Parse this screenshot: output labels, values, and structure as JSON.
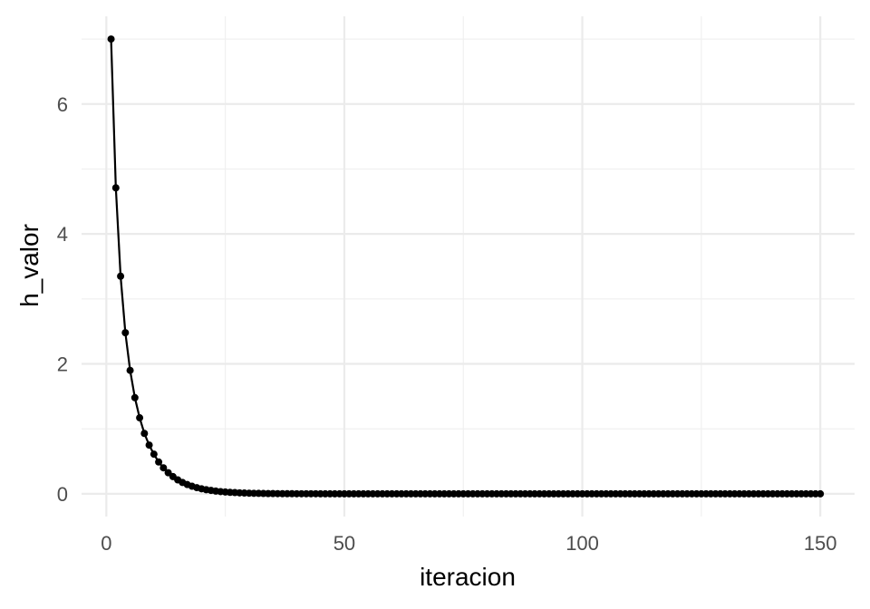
{
  "chart_data": {
    "type": "line",
    "title": "",
    "xlabel": "iteracion",
    "ylabel": "h_valor",
    "xlim": [
      -5.2,
      157.2
    ],
    "ylim": [
      -0.35,
      7.35
    ],
    "x_ticks": [
      0,
      50,
      100,
      150
    ],
    "x_tick_labels": [
      "0",
      "50",
      "100",
      "150"
    ],
    "y_ticks": [
      0,
      2,
      4,
      6
    ],
    "y_tick_labels": [
      "0",
      "2",
      "4",
      "6"
    ],
    "x_minor_ticks": [
      25,
      75,
      125
    ],
    "y_minor_ticks": [
      1,
      3,
      5,
      7
    ],
    "grid": true,
    "legend": "none",
    "line_color": "#000000",
    "point_color": "#000000",
    "series": [
      {
        "x_start": 1,
        "x_end": 150,
        "x_step": 1,
        "values": [
          7.0,
          4.71,
          3.35,
          2.48,
          1.9,
          1.48,
          1.17,
          0.93,
          0.75,
          0.61,
          0.49,
          0.4,
          0.325,
          0.265,
          0.215,
          0.175,
          0.143,
          0.117,
          0.095,
          0.078,
          0.063,
          0.052,
          0.042,
          0.034,
          0.028,
          0.023,
          0.019,
          0.015,
          0.012,
          0.01,
          0.008,
          0.007,
          0.005,
          0.004,
          0.004,
          0.003,
          0.002,
          0.002,
          0.002,
          0.001,
          0.001,
          0.001,
          0.001,
          0.001,
          0.0,
          0.0,
          0.0,
          0.0,
          0.0,
          0.0,
          0.0,
          0.0,
          0.0,
          0.0,
          0.0,
          0.0,
          0.0,
          0.0,
          0.0,
          0.0,
          0.0,
          0.0,
          0.0,
          0.0,
          0.0,
          0.0,
          0.0,
          0.0,
          0.0,
          0.0,
          0.0,
          0.0,
          0.0,
          0.0,
          0.0,
          0.0,
          0.0,
          0.0,
          0.0,
          0.0,
          0.0,
          0.0,
          0.0,
          0.0,
          0.0,
          0.0,
          0.0,
          0.0,
          0.0,
          0.0,
          0.0,
          0.0,
          0.0,
          0.0,
          0.0,
          0.0,
          0.0,
          0.0,
          0.0,
          0.0,
          0.0,
          0.0,
          0.0,
          0.0,
          0.0,
          0.0,
          0.0,
          0.0,
          0.0,
          0.0,
          0.0,
          0.0,
          0.0,
          0.0,
          0.0,
          0.0,
          0.0,
          0.0,
          0.0,
          0.0,
          0.0,
          0.0,
          0.0,
          0.0,
          0.0,
          0.0,
          0.0,
          0.0,
          0.0,
          0.0,
          0.0,
          0.0,
          0.0,
          0.0,
          0.0,
          0.0,
          0.0,
          0.0,
          0.0,
          0.0,
          0.0,
          0.0,
          0.0,
          0.0,
          0.0,
          0.0,
          0.0,
          0.0,
          0.0,
          0.0
        ]
      }
    ]
  }
}
